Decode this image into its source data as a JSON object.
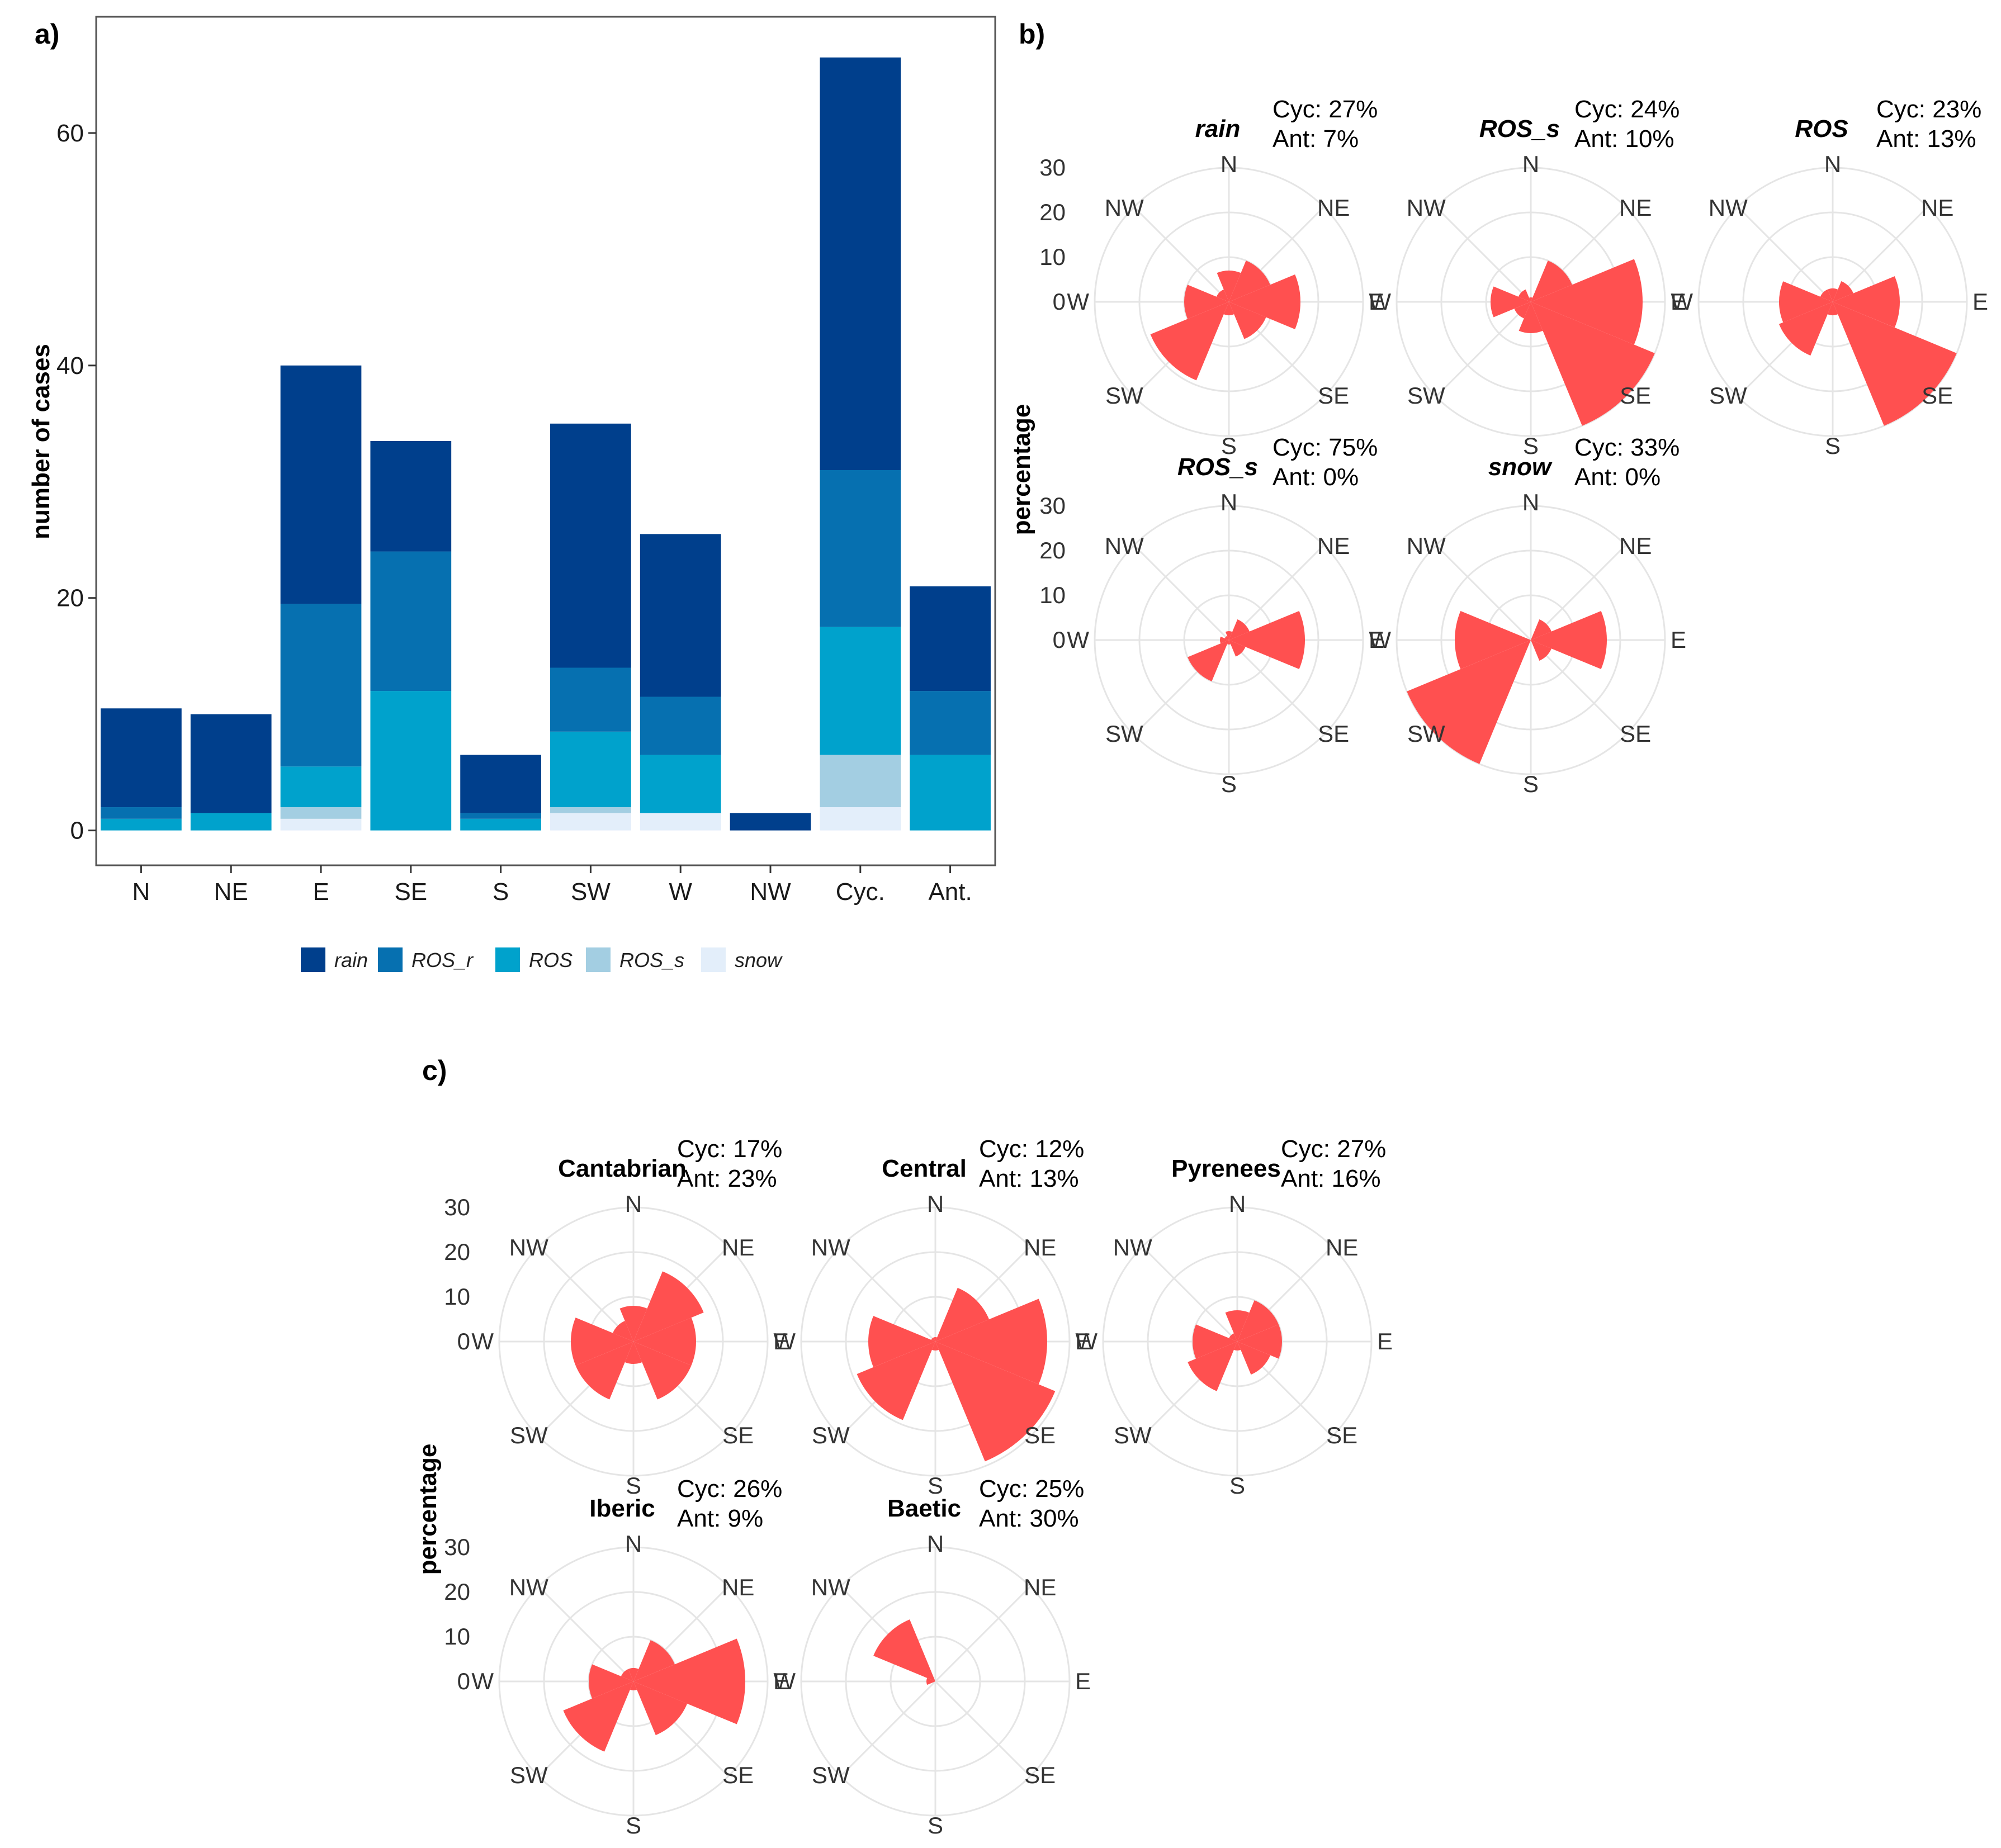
{
  "panel_labels": {
    "a": "a)",
    "b": "b)",
    "c": "c)"
  },
  "colors": {
    "rain": "#003f8c",
    "ROS_r": "#0670b0",
    "ROS": "#00a2cc",
    "ROS_s": "#a3cee2",
    "snow": "#e3eefa",
    "petal": "#ff5050",
    "grid": "#e5e5e5"
  },
  "chart_data": [
    {
      "type": "bar",
      "stacked": true,
      "panel": "a)",
      "title": "",
      "xlabel": "",
      "ylabel": "number of cases",
      "ylim": [
        -3,
        70
      ],
      "yticks": [
        "0",
        "20",
        "40",
        "60"
      ],
      "categories": [
        "N",
        "NE",
        "E",
        "SE",
        "S",
        "SW",
        "W",
        "NW",
        "Cyc.",
        "Ant."
      ],
      "series": [
        {
          "name": "snow",
          "values": [
            0,
            0,
            1,
            0,
            0,
            1.5,
            1.5,
            0,
            2,
            0
          ]
        },
        {
          "name": "ROS_s",
          "values": [
            0,
            0,
            1,
            0,
            0,
            0.5,
            0,
            0,
            4.5,
            0
          ]
        },
        {
          "name": "ROS",
          "values": [
            1,
            1.5,
            3.5,
            12,
            1,
            6.5,
            5,
            0,
            11,
            6.5
          ]
        },
        {
          "name": "ROS_r",
          "values": [
            1,
            0,
            14,
            12,
            0.5,
            5.5,
            5,
            0,
            13.5,
            5.5
          ]
        },
        {
          "name": "rain",
          "values": [
            8.5,
            8.5,
            20.5,
            9.5,
            5,
            21,
            14,
            1.5,
            35.5,
            9
          ]
        }
      ],
      "legend": {
        "position": "bottom",
        "entries": [
          "rain",
          "ROS_r",
          "ROS",
          "ROS_s",
          "snow"
        ]
      }
    },
    {
      "type": "polar-rose",
      "panel": "b)",
      "ylabel": "percentage",
      "rmax": 30,
      "rticks": [
        "0",
        "10",
        "20",
        "30"
      ],
      "directions": [
        "N",
        "NE",
        "E",
        "SE",
        "S",
        "SW",
        "W",
        "NW"
      ],
      "plots": [
        {
          "title": "rain",
          "cyc": "Cyc: 27%",
          "ant": "Ant: 7%",
          "values": [
            7,
            10,
            16,
            9,
            3,
            19,
            10,
            3
          ]
        },
        {
          "title": "ROS_s",
          "cyc": "Cyc: 24%",
          "ant": "Ant: 10%",
          "values": [
            1,
            10,
            25,
            32,
            7,
            4,
            9,
            3
          ]
        },
        {
          "title": "ROS",
          "cyc": "Cyc: 23%",
          "ant": "Ant: 13%",
          "values": [
            3,
            5,
            15,
            32,
            3,
            13,
            12,
            3
          ]
        },
        {
          "title": "ROS_s",
          "cyc": "Cyc: 75%",
          "ant": "Ant: 0%",
          "values": [
            2,
            5,
            17,
            4,
            1,
            10,
            2,
            1
          ]
        },
        {
          "title": "snow",
          "cyc": "Cyc: 33%",
          "ant": "Ant: 0%",
          "values": [
            0,
            5,
            17,
            5,
            0,
            33,
            17,
            0
          ]
        }
      ]
    },
    {
      "type": "polar-rose",
      "panel": "c)",
      "ylabel": "percentage",
      "rmax": 30,
      "rticks": [
        "0",
        "10",
        "20",
        "30"
      ],
      "directions": [
        "N",
        "NE",
        "E",
        "SE",
        "S",
        "SW",
        "W",
        "NW"
      ],
      "plots": [
        {
          "title": "Cantabrian",
          "cyc": "Cyc: 17%",
          "ant": "Ant: 23%",
          "values": [
            8,
            17,
            14,
            14,
            5,
            14,
            14,
            5
          ]
        },
        {
          "title": "Central",
          "cyc": "Cyc: 12%",
          "ant": "Ant: 13%",
          "values": [
            1,
            13,
            25,
            29,
            2,
            19,
            15,
            1
          ]
        },
        {
          "title": "Pyrenees",
          "cyc": "Cyc: 27%",
          "ant": "Ant: 16%",
          "values": [
            7,
            10,
            10,
            8,
            2,
            12,
            10,
            2
          ]
        },
        {
          "title": "Iberic",
          "cyc": "Cyc: 26%",
          "ant": "Ant: 9%",
          "values": [
            3,
            10,
            25,
            13,
            2,
            17,
            10,
            3
          ]
        },
        {
          "title": "Baetic",
          "cyc": "Cyc: 25%",
          "ant": "Ant: 30%",
          "values": [
            0,
            0,
            0,
            0,
            0,
            0,
            2,
            15
          ]
        }
      ]
    }
  ]
}
